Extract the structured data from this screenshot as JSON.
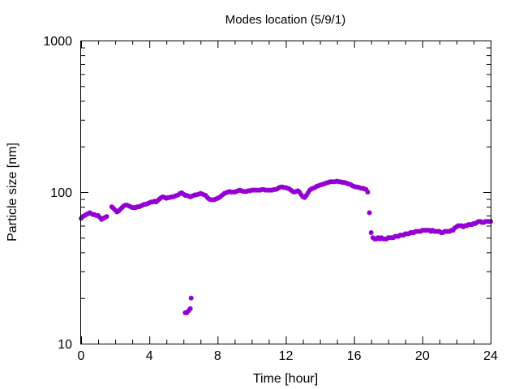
{
  "chart_data": {
    "type": "scatter",
    "title": "Modes location (5/9/1)",
    "xlabel": "Time [hour]",
    "ylabel": "Particle size [nm]",
    "xlim": [
      0,
      24
    ],
    "ylim": [
      10,
      1000
    ],
    "yscale": "log",
    "x_ticks": [
      0,
      4,
      8,
      12,
      16,
      20,
      24
    ],
    "x_tick_labels": [
      "0",
      "4",
      "8",
      "12",
      "16",
      "20",
      "24"
    ],
    "y_ticks": [
      10,
      100,
      1000
    ],
    "y_tick_labels": [
      "10",
      "100",
      "1000"
    ],
    "grid": false,
    "legend": "none",
    "marker_color": "#9400d3",
    "points": [
      [
        0.0,
        67
      ],
      [
        0.1,
        69
      ],
      [
        0.2,
        70
      ],
      [
        0.3,
        71
      ],
      [
        0.4,
        72
      ],
      [
        0.5,
        73
      ],
      [
        0.6,
        72
      ],
      [
        0.7,
        71
      ],
      [
        0.8,
        71
      ],
      [
        0.9,
        70
      ],
      [
        1.0,
        70
      ],
      [
        1.1,
        68
      ],
      [
        1.2,
        66
      ],
      [
        1.3,
        67
      ],
      [
        1.4,
        68
      ],
      [
        1.5,
        69
      ],
      [
        1.8,
        80
      ],
      [
        1.9,
        78
      ],
      [
        2.0,
        76
      ],
      [
        2.1,
        74
      ],
      [
        2.2,
        75
      ],
      [
        2.3,
        77
      ],
      [
        2.4,
        79
      ],
      [
        2.5,
        81
      ],
      [
        2.6,
        82
      ],
      [
        2.7,
        82
      ],
      [
        2.8,
        81
      ],
      [
        2.9,
        80
      ],
      [
        3.0,
        79
      ],
      [
        3.1,
        79
      ],
      [
        3.2,
        79
      ],
      [
        3.3,
        80
      ],
      [
        3.4,
        80
      ],
      [
        3.5,
        81
      ],
      [
        3.6,
        82
      ],
      [
        3.7,
        83
      ],
      [
        3.8,
        83
      ],
      [
        3.9,
        84
      ],
      [
        4.0,
        85
      ],
      [
        4.1,
        86
      ],
      [
        4.2,
        86
      ],
      [
        4.3,
        87
      ],
      [
        4.4,
        86
      ],
      [
        4.5,
        88
      ],
      [
        4.6,
        90
      ],
      [
        4.7,
        92
      ],
      [
        4.8,
        93
      ],
      [
        4.9,
        92
      ],
      [
        5.0,
        91
      ],
      [
        5.1,
        92
      ],
      [
        5.2,
        92
      ],
      [
        5.3,
        93
      ],
      [
        5.4,
        93
      ],
      [
        5.5,
        94
      ],
      [
        5.6,
        95
      ],
      [
        5.7,
        96
      ],
      [
        5.8,
        98
      ],
      [
        5.9,
        99
      ],
      [
        6.0,
        97
      ],
      [
        6.1,
        95
      ],
      [
        6.2,
        95
      ],
      [
        6.3,
        94
      ],
      [
        6.4,
        93
      ],
      [
        6.5,
        94
      ],
      [
        6.6,
        95
      ],
      [
        6.7,
        96
      ],
      [
        6.8,
        96
      ],
      [
        6.9,
        97
      ],
      [
        7.0,
        98
      ],
      [
        7.1,
        97
      ],
      [
        7.2,
        96
      ],
      [
        7.3,
        95
      ],
      [
        7.4,
        92
      ],
      [
        7.5,
        90
      ],
      [
        7.6,
        89
      ],
      [
        7.7,
        89
      ],
      [
        7.8,
        89
      ],
      [
        7.9,
        90
      ],
      [
        8.0,
        91
      ],
      [
        8.1,
        92
      ],
      [
        8.2,
        94
      ],
      [
        8.3,
        96
      ],
      [
        8.4,
        98
      ],
      [
        8.5,
        99
      ],
      [
        8.6,
        100
      ],
      [
        8.7,
        101
      ],
      [
        8.8,
        100
      ],
      [
        8.9,
        100
      ],
      [
        9.0,
        100
      ],
      [
        9.1,
        101
      ],
      [
        9.2,
        102
      ],
      [
        9.3,
        103
      ],
      [
        9.4,
        102
      ],
      [
        9.5,
        101
      ],
      [
        9.6,
        101
      ],
      [
        9.7,
        101
      ],
      [
        9.8,
        102
      ],
      [
        9.9,
        102
      ],
      [
        10.0,
        103
      ],
      [
        10.1,
        103
      ],
      [
        10.2,
        103
      ],
      [
        10.3,
        103
      ],
      [
        10.4,
        103
      ],
      [
        10.5,
        103
      ],
      [
        10.6,
        104
      ],
      [
        10.7,
        104
      ],
      [
        10.8,
        103
      ],
      [
        10.9,
        103
      ],
      [
        11.0,
        103
      ],
      [
        11.1,
        103
      ],
      [
        11.2,
        103
      ],
      [
        11.3,
        104
      ],
      [
        11.4,
        104
      ],
      [
        11.5,
        105
      ],
      [
        11.6,
        107
      ],
      [
        11.7,
        108
      ],
      [
        11.8,
        108
      ],
      [
        11.9,
        107
      ],
      [
        12.0,
        107
      ],
      [
        12.1,
        106
      ],
      [
        12.2,
        105
      ],
      [
        12.3,
        103
      ],
      [
        12.4,
        101
      ],
      [
        12.5,
        100
      ],
      [
        12.6,
        101
      ],
      [
        12.7,
        102
      ],
      [
        12.8,
        100
      ],
      [
        12.9,
        96
      ],
      [
        13.0,
        93
      ],
      [
        13.1,
        92
      ],
      [
        13.2,
        95
      ],
      [
        13.3,
        99
      ],
      [
        13.4,
        103
      ],
      [
        13.5,
        105
      ],
      [
        13.6,
        106
      ],
      [
        13.7,
        107
      ],
      [
        13.8,
        109
      ],
      [
        13.9,
        110
      ],
      [
        14.0,
        111
      ],
      [
        14.1,
        112
      ],
      [
        14.2,
        113
      ],
      [
        14.3,
        114
      ],
      [
        14.4,
        115
      ],
      [
        14.5,
        116
      ],
      [
        14.6,
        117
      ],
      [
        14.7,
        117
      ],
      [
        14.8,
        117
      ],
      [
        14.9,
        117
      ],
      [
        15.0,
        118
      ],
      [
        15.1,
        117
      ],
      [
        15.2,
        117
      ],
      [
        15.3,
        116
      ],
      [
        15.4,
        116
      ],
      [
        15.5,
        115
      ],
      [
        15.6,
        114
      ],
      [
        15.7,
        113
      ],
      [
        15.8,
        112
      ],
      [
        15.9,
        110
      ],
      [
        16.0,
        109
      ],
      [
        16.1,
        108
      ],
      [
        16.2,
        108
      ],
      [
        16.3,
        107
      ],
      [
        16.4,
        106
      ],
      [
        16.5,
        106
      ],
      [
        16.6,
        105
      ],
      [
        16.7,
        104
      ],
      [
        16.8,
        100
      ],
      [
        16.9,
        73
      ],
      [
        17.0,
        54
      ],
      [
        17.1,
        50
      ],
      [
        17.2,
        49
      ],
      [
        17.3,
        49
      ],
      [
        17.4,
        50
      ],
      [
        17.5,
        49
      ],
      [
        17.6,
        50
      ],
      [
        17.7,
        49
      ],
      [
        17.8,
        49
      ],
      [
        17.9,
        49
      ],
      [
        18.0,
        50
      ],
      [
        18.1,
        50
      ],
      [
        18.2,
        50
      ],
      [
        18.3,
        50
      ],
      [
        18.4,
        51
      ],
      [
        18.5,
        51
      ],
      [
        18.6,
        51
      ],
      [
        18.7,
        52
      ],
      [
        18.8,
        52
      ],
      [
        18.9,
        52
      ],
      [
        19.0,
        53
      ],
      [
        19.1,
        53
      ],
      [
        19.2,
        53
      ],
      [
        19.3,
        54
      ],
      [
        19.4,
        54
      ],
      [
        19.5,
        54
      ],
      [
        19.6,
        55
      ],
      [
        19.7,
        55
      ],
      [
        19.8,
        55
      ],
      [
        19.9,
        55
      ],
      [
        20.0,
        56
      ],
      [
        20.1,
        56
      ],
      [
        20.2,
        56
      ],
      [
        20.3,
        56
      ],
      [
        20.4,
        56
      ],
      [
        20.5,
        55
      ],
      [
        20.6,
        56
      ],
      [
        20.7,
        55
      ],
      [
        20.8,
        55
      ],
      [
        20.9,
        55
      ],
      [
        21.0,
        55
      ],
      [
        21.1,
        54
      ],
      [
        21.2,
        54
      ],
      [
        21.3,
        55
      ],
      [
        21.4,
        55
      ],
      [
        21.5,
        55
      ],
      [
        21.6,
        55
      ],
      [
        21.7,
        56
      ],
      [
        21.8,
        56
      ],
      [
        21.9,
        58
      ],
      [
        22.0,
        59
      ],
      [
        22.1,
        60
      ],
      [
        22.2,
        60
      ],
      [
        22.3,
        60
      ],
      [
        22.4,
        59
      ],
      [
        22.5,
        60
      ],
      [
        22.6,
        60
      ],
      [
        22.7,
        61
      ],
      [
        22.8,
        61
      ],
      [
        22.9,
        61
      ],
      [
        23.0,
        62
      ],
      [
        23.1,
        62
      ],
      [
        23.2,
        63
      ],
      [
        23.3,
        64
      ],
      [
        23.4,
        64
      ],
      [
        23.5,
        63
      ],
      [
        23.6,
        63
      ],
      [
        23.7,
        64
      ],
      [
        23.8,
        64
      ],
      [
        23.9,
        64
      ],
      [
        24.0,
        64
      ],
      [
        6.1,
        16
      ],
      [
        6.2,
        16
      ],
      [
        6.3,
        16.5
      ],
      [
        6.4,
        17
      ],
      [
        6.45,
        20
      ]
    ]
  }
}
